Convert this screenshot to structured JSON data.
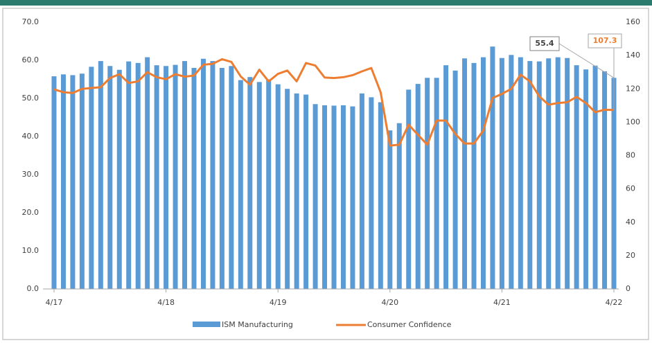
{
  "chart_data": {
    "type": "bar-line",
    "categories": [
      "4/17",
      null,
      null,
      null,
      null,
      null,
      null,
      null,
      null,
      null,
      null,
      null,
      "4/18",
      null,
      null,
      null,
      null,
      null,
      null,
      null,
      null,
      null,
      null,
      null,
      "4/19",
      null,
      null,
      null,
      null,
      null,
      null,
      null,
      null,
      null,
      null,
      null,
      "4/20",
      null,
      null,
      null,
      null,
      null,
      null,
      null,
      null,
      null,
      null,
      null,
      "4/21",
      null,
      null,
      null,
      null,
      null,
      null,
      null,
      null,
      null,
      null,
      null,
      "4/22"
    ],
    "series": [
      {
        "name": "ISM Manufacturing",
        "type": "bar",
        "color": "#5b9bd5",
        "values": [
          55.8,
          56.3,
          56.1,
          56.5,
          58.3,
          59.8,
          58.5,
          57.5,
          59.7,
          59.3,
          60.8,
          58.7,
          58.5,
          58.8,
          59.8,
          58.0,
          60.4,
          59.8,
          58.0,
          58.5,
          54.8,
          55.6,
          54.3,
          55.0,
          53.7,
          52.5,
          51.3,
          51.0,
          48.5,
          48.2,
          48.1,
          48.2,
          47.9,
          51.3,
          50.3,
          49.0,
          41.6,
          43.5,
          52.3,
          53.8,
          55.4,
          55.4,
          58.7,
          57.3,
          60.5,
          59.3,
          60.8,
          63.6,
          60.6,
          61.4,
          60.8,
          59.8,
          59.7,
          60.5,
          60.8,
          60.6,
          58.7,
          57.6,
          58.6,
          57.1,
          55.4
        ]
      },
      {
        "name": "Consumer Confidence",
        "type": "line",
        "axis": "y2",
        "color": "#ed7d31",
        "values": [
          119.7,
          118.0,
          117.5,
          120.0,
          120.5,
          121.0,
          126.5,
          128.8,
          123.5,
          124.5,
          130.0,
          127.0,
          125.8,
          128.8,
          127.3,
          128.0,
          134.5,
          135.0,
          137.8,
          136.2,
          127.5,
          122.5,
          131.5,
          124.5,
          129.0,
          131.0,
          124.5,
          135.5,
          134.0,
          126.8,
          126.5,
          127.0,
          128.2,
          130.5,
          132.5,
          118.0,
          86.0,
          86.5,
          98.5,
          92.5,
          86.5,
          101.0,
          101.0,
          93.0,
          87.2,
          87.2,
          95.0,
          114.5,
          117.0,
          120.0,
          128.5,
          124.5,
          115.5,
          110.5,
          111.5,
          112.0,
          115.2,
          111.5,
          106.0,
          107.5,
          107.3
        ]
      }
    ],
    "ylim": [
      0,
      70
    ],
    "yticks": [
      {
        "value": 0,
        "label": "0.0"
      },
      {
        "value": 10,
        "label": "10.0"
      },
      {
        "value": 20,
        "label": "20.0"
      },
      {
        "value": 30,
        "label": "30.0"
      },
      {
        "value": 40,
        "label": "40.0"
      },
      {
        "value": 50,
        "label": "50.0"
      },
      {
        "value": 60,
        "label": "60.0"
      },
      {
        "value": 70,
        "label": "70.0"
      }
    ],
    "y2lim": [
      0,
      160
    ],
    "y2ticks": [
      0,
      20,
      40,
      60,
      80,
      100,
      120,
      140,
      160
    ],
    "grid": false,
    "legend": "bottom"
  }
}
